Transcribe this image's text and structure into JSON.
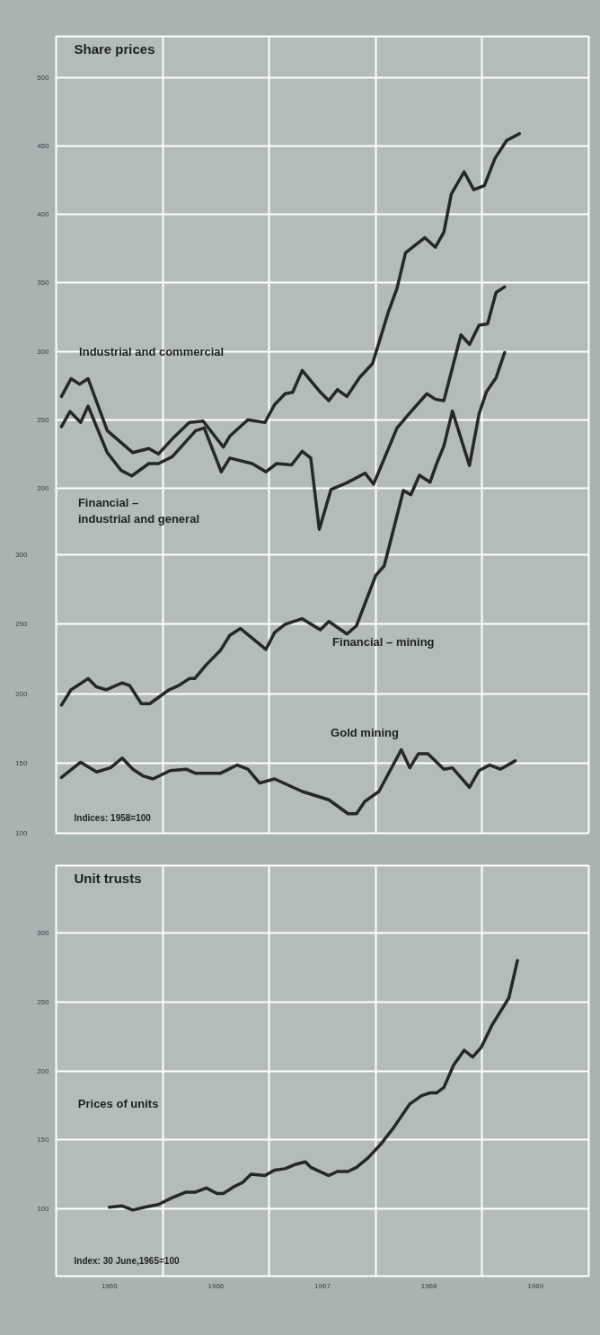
{
  "chart_data": [
    {
      "type": "line",
      "title": "Share prices",
      "annotations": [
        "Indices: 1958=100"
      ],
      "grid": true,
      "tick_labels": "y",
      "xlim": [
        1965,
        1970
      ],
      "xticks": [
        {
          "value": 1965,
          "label": null
        },
        {
          "value": 1966,
          "label": null
        },
        {
          "value": 1967,
          "label": null
        },
        {
          "value": 1968,
          "label": null
        },
        {
          "value": 1969,
          "label": null
        }
      ],
      "ylim": [
        -52,
        530
      ],
      "yticks": [
        200,
        250,
        300,
        350,
        400,
        450,
        500
      ],
      "y2lim": [
        100,
        672
      ],
      "y2ticks": [
        100,
        150,
        200,
        250,
        300
      ],
      "series": [
        {
          "name": "Industrial and commercial",
          "color": "#252728",
          "x": [
            1965.05,
            1965.14,
            1965.22,
            1965.3,
            1965.48,
            1965.72,
            1965.87,
            1965.96,
            1966.09,
            1966.25,
            1966.38,
            1966.57,
            1966.63,
            1966.8,
            1966.96,
            1967.05,
            1967.15,
            1967.22,
            1967.31,
            1967.47,
            1967.56,
            1967.64,
            1967.73,
            1967.85,
            1967.97,
            1968.12,
            1968.2,
            1968.28,
            1968.46,
            1968.56,
            1968.64,
            1968.71,
            1968.83,
            1968.92,
            1969.02,
            1969.12,
            1969.23,
            1969.35
          ],
          "values": [
            267,
            280,
            276,
            280,
            242,
            226,
            229,
            225,
            236,
            248,
            249,
            230,
            238,
            250,
            248,
            261,
            269,
            270,
            286,
            271,
            264,
            272,
            267,
            281,
            291,
            329,
            346,
            372,
            383,
            376,
            387,
            415,
            431,
            418,
            421,
            441,
            454,
            459
          ]
        },
        {
          "name": "Financial –\nindustrial and general",
          "color": "#252728",
          "x": [
            1965.05,
            1965.13,
            1965.23,
            1965.3,
            1965.48,
            1965.61,
            1965.71,
            1965.87,
            1965.96,
            1966.09,
            1966.31,
            1966.39,
            1966.55,
            1966.63,
            1966.84,
            1966.97,
            1967.07,
            1967.21,
            1967.31,
            1967.39,
            1967.47,
            1967.58,
            1967.73,
            1967.9,
            1967.98,
            1968.2,
            1968.32,
            1968.48,
            1968.56,
            1968.64,
            1968.8,
            1968.88,
            1968.97,
            1969.05,
            1969.13,
            1969.21
          ],
          "values": [
            245,
            256,
            248,
            260,
            226,
            213,
            209,
            218,
            218,
            223,
            242,
            244,
            212,
            222,
            218,
            212,
            218,
            217,
            227,
            222,
            170,
            199,
            204,
            211,
            203,
            244,
            255,
            269,
            265,
            264,
            312,
            305,
            319,
            320,
            343,
            347
          ]
        },
        {
          "name": "Financial – mining",
          "color": "#252728",
          "axis": "y2",
          "x": [
            1965.05,
            1965.14,
            1965.3,
            1965.38,
            1965.47,
            1965.62,
            1965.69,
            1965.8,
            1965.88,
            1966.06,
            1966.15,
            1966.25,
            1966.3,
            1966.41,
            1966.54,
            1966.63,
            1966.73,
            1966.97,
            1967.05,
            1967.15,
            1967.31,
            1967.48,
            1967.56,
            1967.73,
            1967.82,
            1968.0,
            1968.08,
            1968.26,
            1968.33,
            1968.41,
            1968.51,
            1968.57,
            1968.64,
            1968.72,
            1968.88,
            1968.97,
            1969.04,
            1969.13,
            1969.21
          ],
          "values": [
            192,
            203,
            211,
            205,
            203,
            208,
            206,
            193,
            193,
            203,
            206,
            211,
            211,
            221,
            231,
            242,
            247,
            232,
            244,
            250,
            254,
            246,
            252,
            243,
            249,
            285,
            292,
            346,
            343,
            357,
            352,
            365,
            378,
            403,
            364,
            401,
            417,
            427,
            445
          ]
        },
        {
          "name": "Gold mining",
          "color": "#252728",
          "axis": "y2",
          "x": [
            1965.05,
            1965.23,
            1965.38,
            1965.51,
            1965.62,
            1965.72,
            1965.82,
            1965.91,
            1966.07,
            1966.22,
            1966.31,
            1966.54,
            1966.7,
            1966.8,
            1966.91,
            1967.05,
            1967.31,
            1967.56,
            1967.74,
            1967.82,
            1967.9,
            1968.03,
            1968.24,
            1968.32,
            1968.4,
            1968.49,
            1968.64,
            1968.72,
            1968.88,
            1968.97,
            1969.07,
            1969.17,
            1969.31
          ],
          "values": [
            140,
            151,
            144,
            147,
            154,
            146,
            141,
            139,
            145,
            146,
            143,
            143,
            149,
            146,
            136,
            139,
            130,
            124,
            114,
            114,
            123,
            130,
            160,
            147,
            157,
            157,
            146,
            147,
            133,
            145,
            149,
            146,
            152
          ]
        }
      ]
    },
    {
      "type": "line",
      "title": "Unit trusts",
      "annotations": [
        "Index: 30 June,1965=100"
      ],
      "grid": true,
      "xlim": [
        1965,
        1970
      ],
      "xticks": [
        {
          "value": 1965,
          "label": null
        },
        {
          "value": 1965.5,
          "label": "1965"
        },
        {
          "value": 1966,
          "label": null
        },
        {
          "value": 1966.5,
          "label": "1966"
        },
        {
          "value": 1967,
          "label": null
        },
        {
          "value": 1967.5,
          "label": "1967"
        },
        {
          "value": 1968,
          "label": null
        },
        {
          "value": 1968.5,
          "label": "1968"
        },
        {
          "value": 1969,
          "label": null
        },
        {
          "value": 1969.5,
          "label": "1969"
        }
      ],
      "ylim": [
        51,
        349
      ],
      "yticks": [
        100,
        150,
        200,
        250,
        300
      ],
      "series": [
        {
          "name": "Prices of units",
          "color": "#252728",
          "x": [
            1965.5,
            1965.62,
            1965.72,
            1965.83,
            1965.96,
            1966.09,
            1966.22,
            1966.31,
            1966.41,
            1966.51,
            1966.57,
            1966.67,
            1966.75,
            1966.83,
            1966.96,
            1967.05,
            1967.15,
            1967.24,
            1967.34,
            1967.39,
            1967.56,
            1967.64,
            1967.74,
            1967.82,
            1967.93,
            1968.05,
            1968.17,
            1968.32,
            1968.43,
            1968.51,
            1968.57,
            1968.64,
            1968.73,
            1968.83,
            1968.91,
            1968.99,
            1969.09,
            1969.25,
            1969.33
          ],
          "values": [
            101,
            102,
            99,
            101,
            103,
            108,
            112,
            112,
            115,
            111,
            111,
            116,
            119,
            125,
            124,
            128,
            129,
            132,
            134,
            130,
            124,
            127,
            127,
            130,
            137,
            147,
            159,
            176,
            182,
            184,
            184,
            188,
            204,
            215,
            210,
            217,
            233,
            253,
            280
          ]
        }
      ]
    }
  ]
}
